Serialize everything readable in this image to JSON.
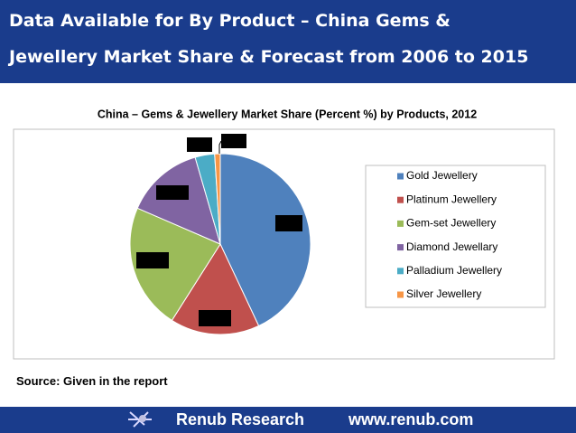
{
  "header": {
    "title_lines": [
      "Data Available for By Product – China Gems &",
      "Jewellery Market Share & Forecast from 2006 to 2015"
    ]
  },
  "chart_data": {
    "type": "pie",
    "title": "China – Gems & Jewellery Market Share (Percent %) by Products, 2012",
    "categories": [
      "Gold Jewellery",
      "Platinum Jewellery",
      "Gem-set Jewellery",
      "Diamond Jewellary",
      "Palladium Jewellery",
      "Silver  Jewellery"
    ],
    "values": [
      43,
      16,
      22.5,
      14,
      3.5,
      1
    ],
    "colors": [
      "#4f81bd",
      "#c0504d",
      "#9bbb59",
      "#8064a2",
      "#4bacc6",
      "#f79646"
    ]
  },
  "source": "Source: Given in the report",
  "footer": {
    "brand": "Renub Research",
    "url": "www.renub.com"
  }
}
